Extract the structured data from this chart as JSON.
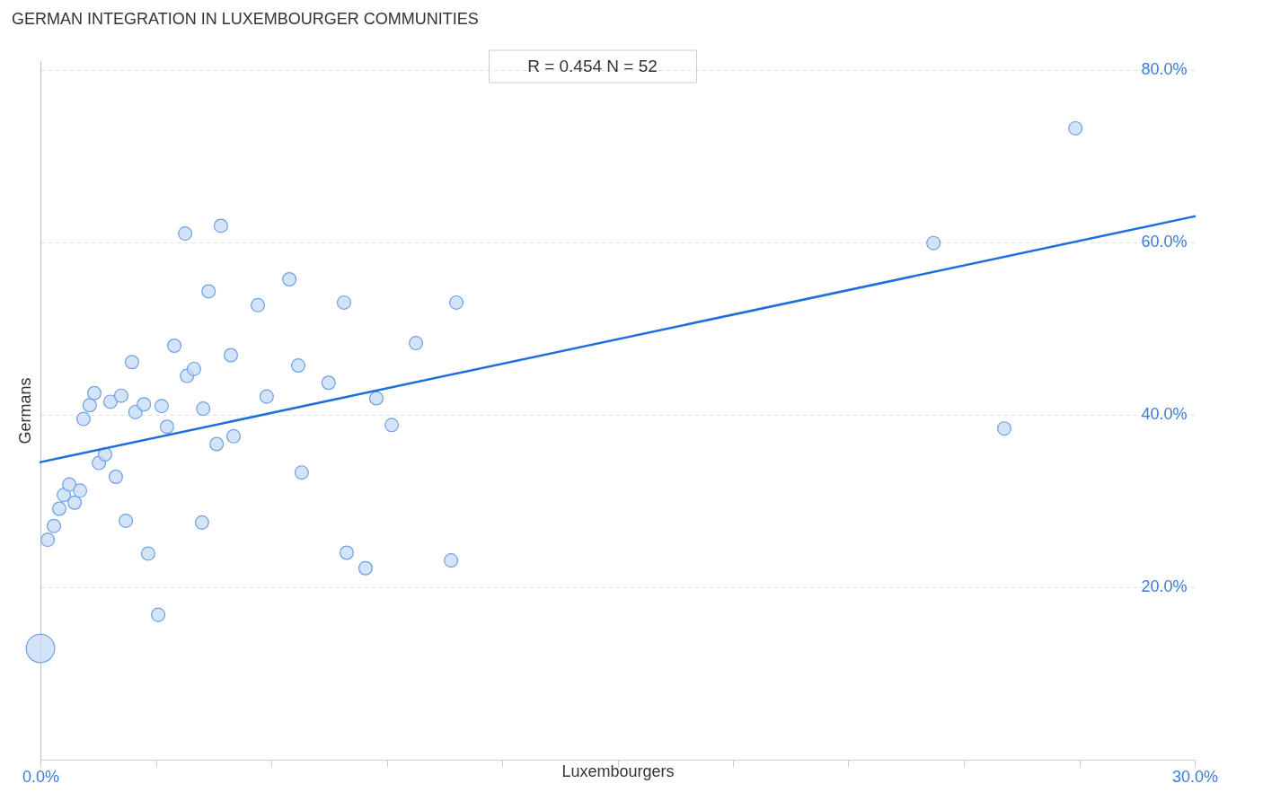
{
  "chart_data": {
    "type": "bubble",
    "title": "GERMAN INTEGRATION IN LUXEMBOURGER COMMUNITIES",
    "xlabel": "Luxembourgers",
    "ylabel": "Germans",
    "annotations": [
      "R = 0.454    N = 52"
    ],
    "xlim": [
      0,
      30
    ],
    "ylim": [
      0,
      81
    ],
    "xticks": [
      {
        "value": 0,
        "label": "0.0%"
      },
      {
        "value": 3,
        "label": null
      },
      {
        "value": 6,
        "label": null
      },
      {
        "value": 9,
        "label": null
      },
      {
        "value": 12,
        "label": null
      },
      {
        "value": 15,
        "label": null
      },
      {
        "value": 18,
        "label": null
      },
      {
        "value": 21,
        "label": null
      },
      {
        "value": 24,
        "label": null
      },
      {
        "value": 27,
        "label": null
      },
      {
        "value": 30,
        "label": "30.0%"
      }
    ],
    "yticks": [
      {
        "value": 20,
        "label": "20.0%"
      },
      {
        "value": 40,
        "label": "40.0%"
      },
      {
        "value": 60,
        "label": "60.0%"
      },
      {
        "value": 80,
        "label": "80.0%"
      }
    ],
    "grid": "y",
    "legend": false,
    "series": [
      {
        "color": "#c6dbf6",
        "x": [
          0,
          0.19,
          0.35,
          0.49,
          0.61,
          0.75,
          0.89,
          1.03,
          1.12,
          1.28,
          1.4,
          1.52,
          1.68,
          1.82,
          1.96,
          2.1,
          2.22,
          2.38,
          2.47,
          2.69,
          2.8,
          3.06,
          3.15,
          3.29,
          3.48,
          3.76,
          3.81,
          3.99,
          4.2,
          4.23,
          4.37,
          4.58,
          4.69,
          4.95,
          5.02,
          5.65,
          5.88,
          6.47,
          6.7,
          6.79,
          7.49,
          7.89,
          7.96,
          8.45,
          8.73,
          9.13,
          9.76,
          10.67,
          10.81,
          23.21,
          25.05,
          26.9
        ],
        "values": [
          12.9,
          25.5,
          27.1,
          29.1,
          30.7,
          31.9,
          29.8,
          31.2,
          39.5,
          41.1,
          42.5,
          34.4,
          35.4,
          41.5,
          32.8,
          42.2,
          27.7,
          46.1,
          40.3,
          41.2,
          23.9,
          16.8,
          41.0,
          38.6,
          48.0,
          61.0,
          44.5,
          45.3,
          27.5,
          40.7,
          54.3,
          36.6,
          61.9,
          46.9,
          37.5,
          52.7,
          42.1,
          55.7,
          45.7,
          33.3,
          43.7,
          53.0,
          24.0,
          22.2,
          41.9,
          38.8,
          48.3,
          23.1,
          53.0,
          59.9,
          38.4,
          73.2
        ],
        "sizes": [
          1,
          0.22,
          0.22,
          0.22,
          0.22,
          0.22,
          0.22,
          0.22,
          0.22,
          0.22,
          0.22,
          0.22,
          0.22,
          0.22,
          0.22,
          0.22,
          0.22,
          0.22,
          0.22,
          0.22,
          0.22,
          0.22,
          0.22,
          0.22,
          0.22,
          0.22,
          0.22,
          0.22,
          0.22,
          0.22,
          0.22,
          0.22,
          0.22,
          0.22,
          0.22,
          0.22,
          0.22,
          0.22,
          0.22,
          0.22,
          0.22,
          0.22,
          0.22,
          0.22,
          0.22,
          0.22,
          0.22,
          0.22,
          0.22,
          0.22,
          0.22,
          0.22
        ]
      },
      {
        "type": "line",
        "color": "#1f6fdb",
        "line_style": "solid",
        "x": [
          0,
          30
        ],
        "values": [
          34.5,
          63.0
        ]
      }
    ]
  }
}
